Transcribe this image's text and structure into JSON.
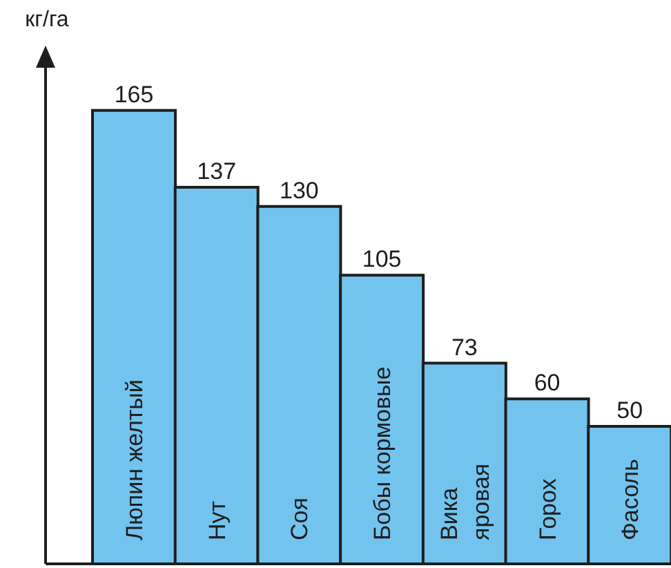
{
  "chart_data": {
    "type": "bar",
    "ylabel": "кг/га",
    "categories": [
      "Люпин желтый",
      "Нут",
      "Соя",
      "Бобы кормовые",
      "Вика яровая",
      "Горох",
      "Фасоль"
    ],
    "values": [
      165,
      137,
      130,
      105,
      73,
      60,
      50
    ],
    "color": "#73c3ef",
    "data_labels": true,
    "tick_labels": "x"
  }
}
